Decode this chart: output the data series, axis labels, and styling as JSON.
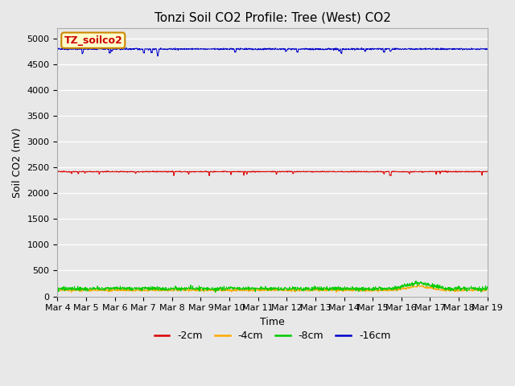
{
  "title": "Tonzi Soil CO2 Profile: Tree (West) CO2",
  "ylabel": "Soil CO2 (mV)",
  "xlabel": "Time",
  "legend_label": "TZ_soilco2",
  "ylim": [
    0,
    5200
  ],
  "yticks": [
    0,
    500,
    1000,
    1500,
    2000,
    2500,
    3000,
    3500,
    4000,
    4500,
    5000
  ],
  "n_points": 1440,
  "series": [
    {
      "label": "-2cm",
      "color": "#dd0000",
      "base_value": 2420,
      "noise_std": 5,
      "line_width": 0.7
    },
    {
      "label": "-4cm",
      "color": "#ffaa00",
      "base_value": 120,
      "noise_std": 12,
      "line_width": 0.7
    },
    {
      "label": "-8cm",
      "color": "#00cc00",
      "base_value": 150,
      "noise_std": 20,
      "line_width": 0.7
    },
    {
      "label": "-16cm",
      "color": "#0000cc",
      "base_value": 4800,
      "noise_std": 8,
      "line_width": 0.7
    }
  ],
  "xtick_labels": [
    "Mar 4",
    "Mar 5",
    "Mar 6",
    "Mar 7",
    "Mar 8",
    "Mar 9",
    "Mar 10",
    "Mar 11",
    "Mar 12",
    "Mar 13",
    "Mar 14",
    "Mar 15",
    "Mar 16",
    "Mar 17",
    "Mar 18",
    "Mar 19"
  ],
  "bg_color": "#e8e8e8",
  "plot_bg_color": "#e8e8e8",
  "grid_color": "#ffffff",
  "title_fontsize": 11,
  "axis_label_fontsize": 9,
  "tick_fontsize": 8,
  "legend_fontsize": 9,
  "legend_box_facecolor": "#ffffcc",
  "legend_box_edgecolor": "#cc8800",
  "legend_text_color": "#cc0000"
}
